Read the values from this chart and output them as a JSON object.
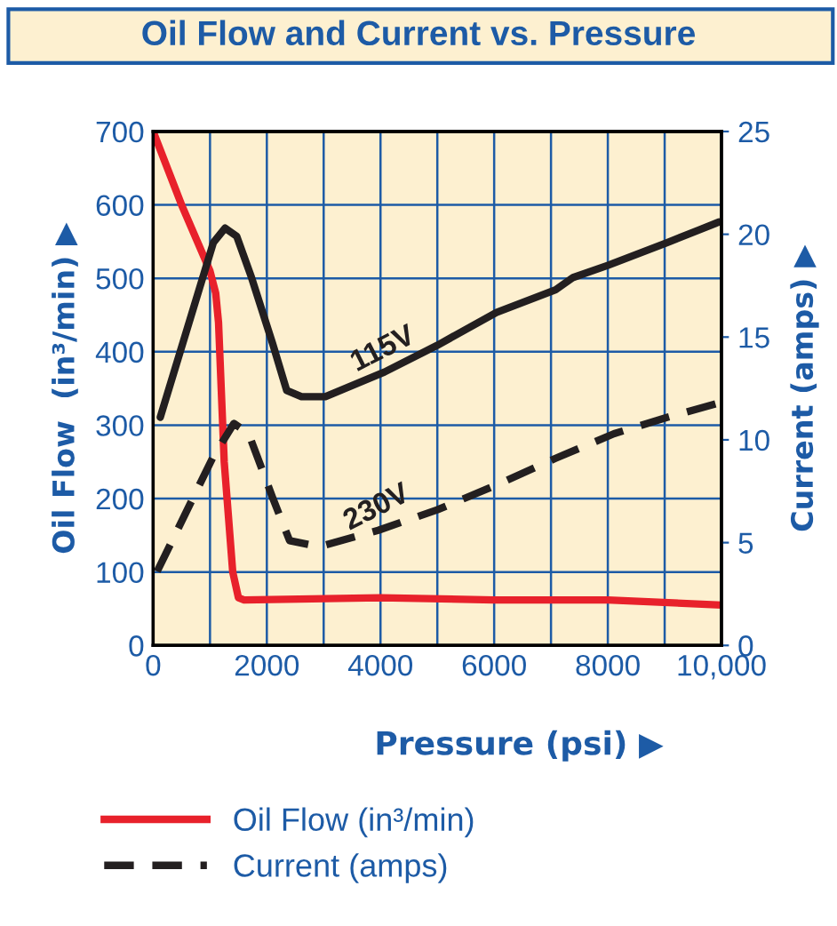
{
  "chart_data": {
    "type": "line",
    "title": "Oil Flow and Current vs. Pressure",
    "xlabel": "Pressure (psi) ▶",
    "ylabel": "Oil Flow  (in³/min) ▶",
    "y2label": "Current (amps) ▶",
    "xlim": [
      0,
      10000
    ],
    "xticks": [
      0,
      {
        "value": 1000,
        "label": null
      },
      2000,
      {
        "value": 3000,
        "label": null
      },
      4000,
      {
        "value": 5000,
        "label": null
      },
      6000,
      {
        "value": 7000,
        "label": null
      },
      8000,
      {
        "value": 9000,
        "label": null
      },
      {
        "value": 10000,
        "label": "10,000"
      }
    ],
    "ylim": [
      0,
      700
    ],
    "yticks": [
      0,
      100,
      200,
      300,
      400,
      500,
      600,
      700
    ],
    "y2lim": [
      0,
      25
    ],
    "y2ticks": [
      0,
      5,
      10,
      15,
      20,
      25
    ],
    "grid": true,
    "legend": "bottom",
    "annotations": [
      "Current (amps)"
    ],
    "series": [
      {
        "name": "Oil Flow (in³/min)",
        "color": "#e8212b",
        "line_style": "solid",
        "x": [
          0,
          500,
          1000,
          1100,
          1150,
          1250,
          1400,
          1500,
          1600,
          4000,
          6000,
          8000,
          10000
        ],
        "values": [
          700,
          600,
          510,
          480,
          440,
          250,
          100,
          65,
          62,
          65,
          62,
          62,
          55
        ]
      },
      {
        "name": "115V",
        "color": "#231f20",
        "line_style": "solid",
        "axis": "y2",
        "x": [
          125,
          1060,
          1265,
          1470,
          1730,
          2100,
          2350,
          2610,
          3030,
          4070,
          5000,
          6040,
          7080,
          7390,
          8010,
          9050,
          9960
        ],
        "values": [
          11.1,
          19.6,
          20.3,
          19.9,
          17.9,
          14.7,
          12.4,
          12.1,
          12.1,
          13.3,
          14.6,
          16.2,
          17.3,
          17.9,
          18.5,
          19.6,
          20.6
        ]
      },
      {
        "name": "230V",
        "color": "#231f20",
        "line_style": "dashed",
        "axis": "y2",
        "x": [
          70,
          1060,
          1420,
          1680,
          2100,
          2400,
          2925,
          3960,
          5000,
          6040,
          7080,
          8110,
          9050,
          9960
        ],
        "values": [
          3.6,
          9.2,
          10.8,
          10.3,
          7.2,
          5.1,
          4.8,
          5.6,
          6.6,
          7.8,
          9.1,
          10.3,
          11.1,
          11.8
        ]
      }
    ]
  }
}
